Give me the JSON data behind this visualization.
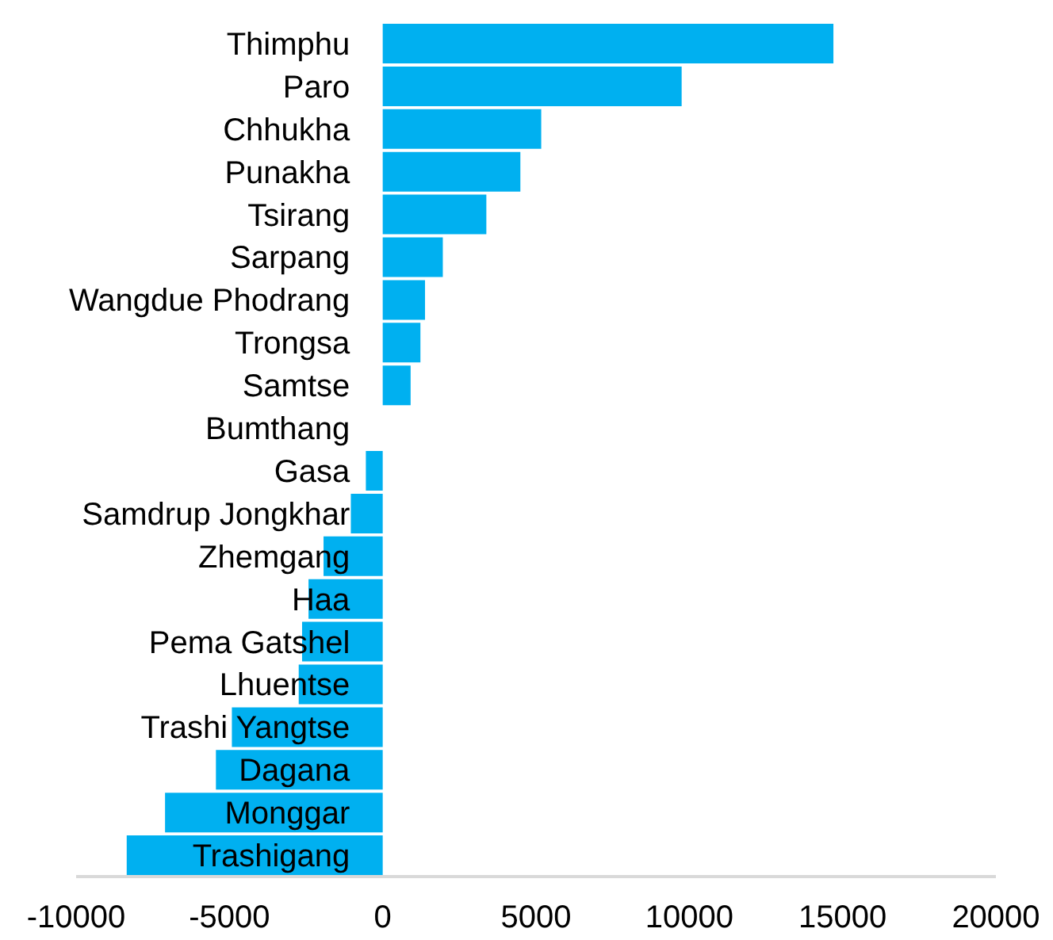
{
  "chart_data": {
    "type": "bar",
    "orientation": "horizontal",
    "categories": [
      "Thimphu",
      "Paro",
      "Chhukha",
      "Punakha",
      "Tsirang",
      "Sarpang",
      "Wangdue Phodrang",
      "Trongsa",
      "Samtse",
      "Bumthang",
      "Gasa",
      "Samdrup Jongkhar",
      "Zhemgang",
      "Haa",
      "Pema Gatshel",
      "Lhuentse",
      "Trashi Yangtse",
      "Dagana",
      "Monggar",
      "Trashigang"
    ],
    "values": [
      14700,
      9750,
      5170,
      4490,
      3380,
      1960,
      1380,
      1230,
      910,
      0,
      -550,
      -1040,
      -1930,
      -2420,
      -2630,
      -2740,
      -4920,
      -5440,
      -7100,
      -8350
    ],
    "color": "#00b0f0",
    "xlim": [
      -10000,
      20000
    ],
    "xticks": [
      -10000,
      -5000,
      0,
      5000,
      10000,
      15000,
      20000
    ],
    "grid": false
  }
}
